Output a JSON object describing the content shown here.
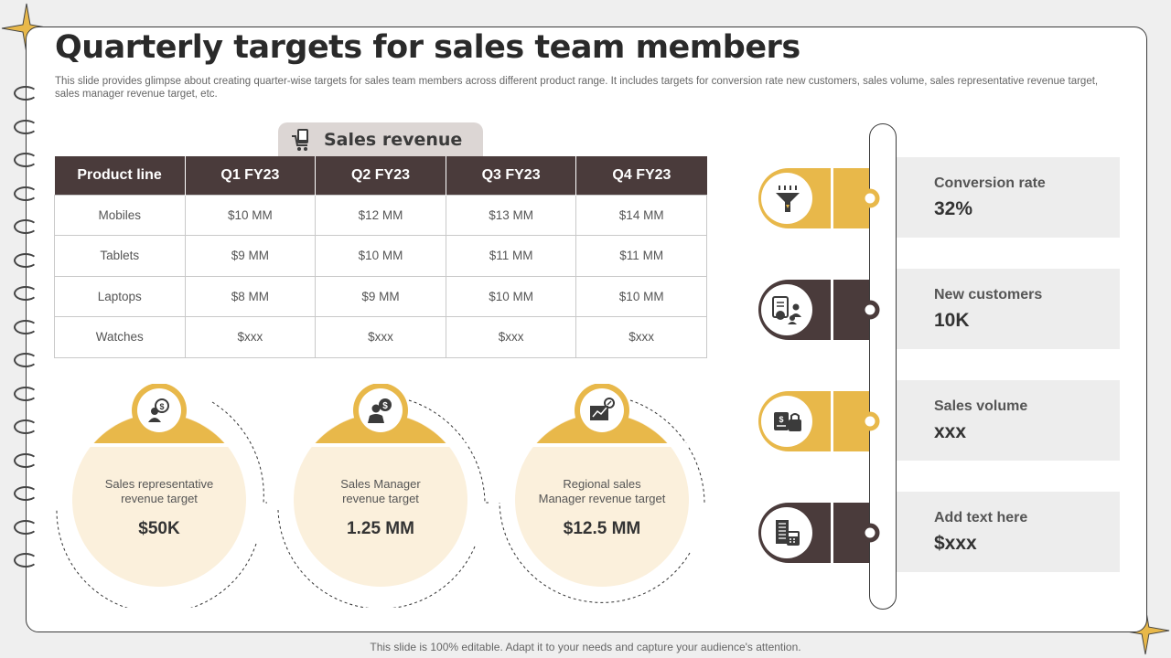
{
  "title": "Quarterly targets for sales team members",
  "subtitle": "This slide provides glimpse about creating quarter-wise targets for sales team members across different product range. It includes targets for conversion rate new customers, sales volume, sales representative revenue target, sales manager revenue target, etc.",
  "sales_revenue": {
    "tab_label": "Sales revenue",
    "headers": [
      "Product line",
      "Q1 FY23",
      "Q2 FY23",
      "Q3 FY23",
      "Q4 FY23"
    ],
    "rows": [
      [
        "Mobiles",
        "$10 MM",
        "$12 MM",
        "$13 MM",
        "$14 MM"
      ],
      [
        "Tablets",
        "$9 MM",
        "$10 MM",
        "$11 MM",
        "$11 MM"
      ],
      [
        "Laptops",
        "$8 MM",
        "$9 MM",
        "$10 MM",
        "$10 MM"
      ],
      [
        "Watches",
        "$xxx",
        "$xxx",
        "$xxx",
        "$xxx"
      ]
    ]
  },
  "targets": [
    {
      "label_line1": "Sales representative",
      "label_line2": "revenue target",
      "value": "$50K",
      "icon": "dollar-person-icon"
    },
    {
      "label_line1": "Sales Manager",
      "label_line2": "revenue target",
      "value": "1.25 MM",
      "icon": "manager-dollar-icon"
    },
    {
      "label_line1": "Regional sales",
      "label_line2": "Manager revenue target",
      "value": "$12.5 MM",
      "icon": "growth-chart-icon"
    }
  ],
  "metrics": [
    {
      "label": "Conversion rate",
      "value": "32%",
      "color": "#e8b84a",
      "icon": "funnel-icon"
    },
    {
      "label": "New customers",
      "value": "10K",
      "color": "#4a3b3b",
      "icon": "customers-icon"
    },
    {
      "label": "Sales volume",
      "value": "xxx",
      "color": "#e8b84a",
      "icon": "sales-volume-icon"
    },
    {
      "label": "Add text here",
      "value": "$xxx",
      "color": "#4a3b3b",
      "icon": "calculator-icon"
    }
  ],
  "colors": {
    "gold": "#e8b84a",
    "brown": "#4a3b3b",
    "cream": "#fbf0dc",
    "panel": "#ededed"
  },
  "footer": "This slide is 100% editable. Adapt it to your needs and capture your audience's attention."
}
